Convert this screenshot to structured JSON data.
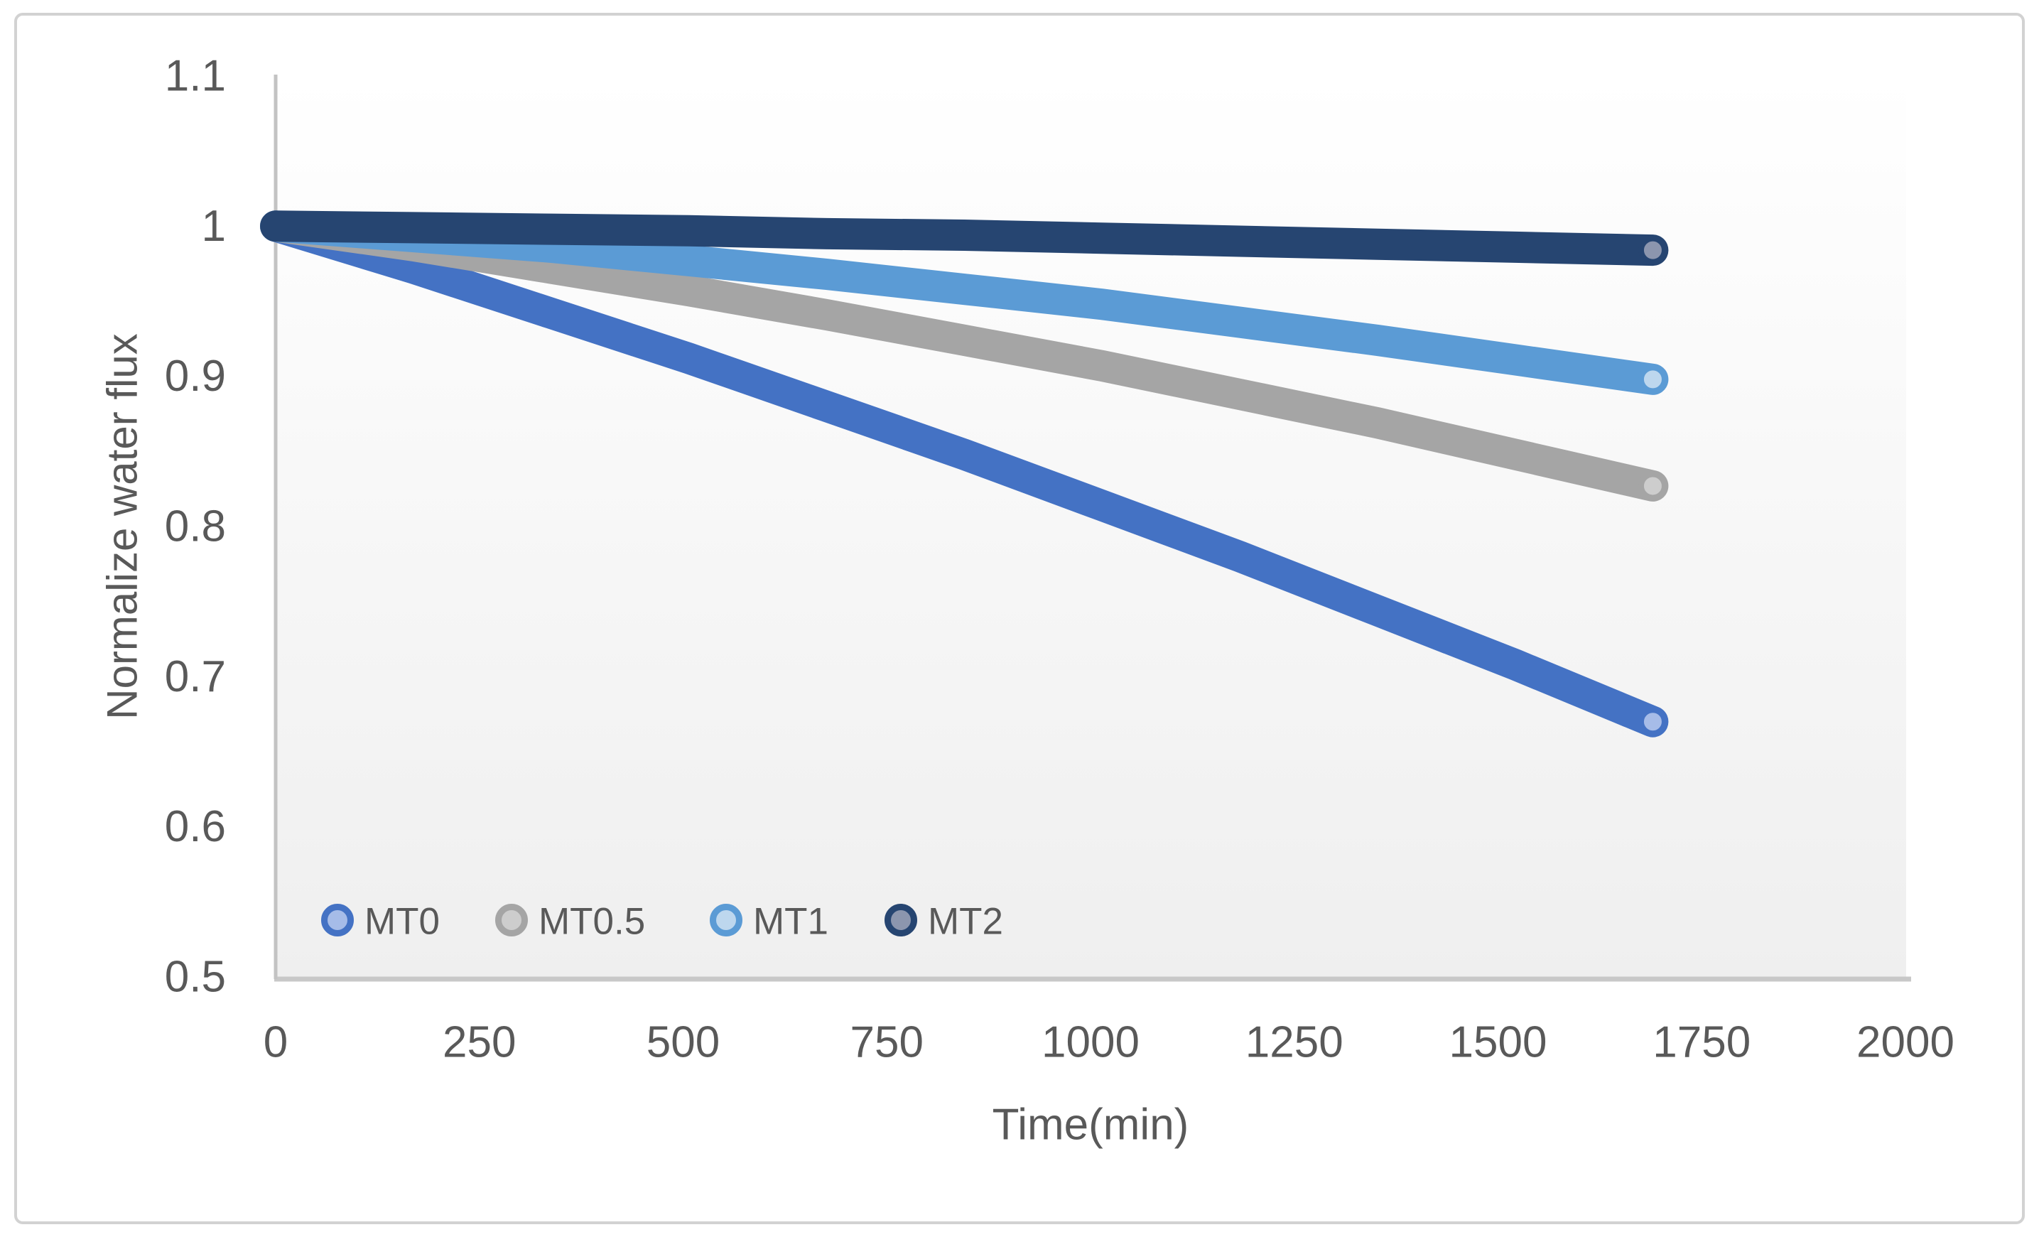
{
  "chart_data": {
    "type": "line",
    "title": "",
    "xlabel": "Time(min)",
    "ylabel": "Normalize water flux",
    "xlim": [
      0,
      2000
    ],
    "ylim": [
      0.5,
      1.1
    ],
    "x_ticks": [
      "0",
      "250",
      "500",
      "750",
      "1000",
      "1250",
      "1500",
      "1750",
      "2000"
    ],
    "y_ticks": [
      "1.1",
      "1",
      "0.9",
      "0.8",
      "0.7",
      "0.6",
      "0.5"
    ],
    "grid": false,
    "legend_position": "inside-bottom-left",
    "colors": {
      "text": "#595959",
      "frame_border": "#D2D2D2",
      "axis_line": "#C3C3C3",
      "plot_bottom_edge": "#C8C8C8",
      "plot_gradient_top": "#FFFFFF",
      "plot_gradient_bottom": "#EFEFEF"
    },
    "x": [
      0,
      169,
      338,
      507,
      676,
      845,
      1014,
      1183,
      1352,
      1521,
      1690
    ],
    "series": [
      {
        "name": "MT0",
        "color": "#4472C4",
        "marker_fill": "#A6BCE8",
        "values": [
          1,
          0.972,
          0.942,
          0.912,
          0.88,
          0.848,
          0.814,
          0.78,
          0.744,
          0.708,
          0.67
        ]
      },
      {
        "name": "MT0.5",
        "color": "#A5A5A5",
        "marker_fill": "#CDCDCD",
        "values": [
          1,
          0.987,
          0.972,
          0.957,
          0.941,
          0.924,
          0.907,
          0.888,
          0.869,
          0.848,
          0.827
        ]
      },
      {
        "name": "MT1",
        "color": "#5B9BD5",
        "marker_fill": "#BDD7EE",
        "values": [
          1,
          0.993,
          0.986,
          0.977,
          0.968,
          0.958,
          0.948,
          0.936,
          0.924,
          0.911,
          0.898
        ]
      },
      {
        "name": "MT2",
        "color": "#264571",
        "marker_fill": "#8C96AE",
        "values": [
          1,
          0.999,
          0.998,
          0.997,
          0.995,
          0.994,
          0.992,
          0.99,
          0.988,
          0.986,
          0.984
        ]
      }
    ]
  }
}
